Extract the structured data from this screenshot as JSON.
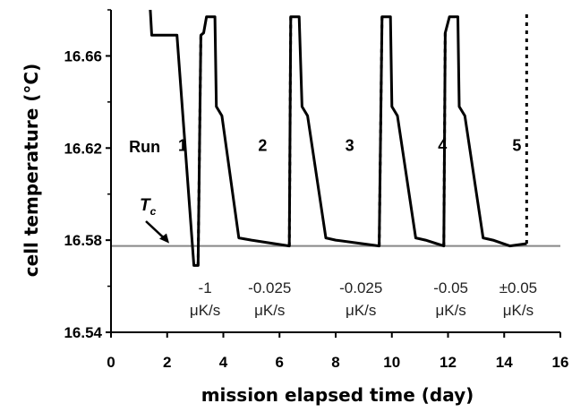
{
  "chart_data": {
    "type": "line",
    "xlabel": "mission elapsed time (day)",
    "ylabel": "cell temperature (°C)",
    "xlim": [
      0,
      16
    ],
    "ylim": [
      16.54,
      16.68
    ],
    "x_ticks": [
      0,
      2,
      4,
      6,
      8,
      10,
      12,
      14,
      16
    ],
    "y_ticks": [
      16.54,
      16.58,
      16.62,
      16.66
    ],
    "x_tick_labels": [
      "0",
      "2",
      "4",
      "6",
      "8",
      "10",
      "12",
      "14",
      "16"
    ],
    "y_tick_labels": [
      "16.54",
      "16.58",
      "16.62",
      "16.66"
    ],
    "grid": false,
    "reference_line": {
      "label": "T",
      "subscript": "c",
      "y": 16.5775,
      "color": "#888888"
    },
    "series": [
      {
        "values": [
          [
            1.35,
            16.68
          ],
          [
            1.4,
            16.68
          ],
          [
            1.45,
            16.669
          ],
          [
            2.3,
            16.669
          ],
          [
            2.35,
            16.669
          ],
          [
            2.95,
            16.569
          ],
          [
            3.05,
            16.569
          ],
          [
            3.1,
            16.569
          ],
          [
            3.2,
            16.669
          ],
          [
            3.3,
            16.67
          ],
          [
            3.4,
            16.677
          ],
          [
            3.7,
            16.677
          ],
          [
            3.75,
            16.638
          ],
          [
            3.95,
            16.634
          ],
          [
            4.55,
            16.581
          ],
          [
            5.0,
            16.58
          ],
          [
            6.35,
            16.5775
          ],
          [
            6.4,
            16.677
          ],
          [
            6.7,
            16.677
          ],
          [
            6.8,
            16.638
          ],
          [
            7.0,
            16.634
          ],
          [
            7.65,
            16.581
          ],
          [
            8.0,
            16.58
          ],
          [
            9.55,
            16.5775
          ],
          [
            9.65,
            16.677
          ],
          [
            9.95,
            16.677
          ],
          [
            10.0,
            16.638
          ],
          [
            10.2,
            16.634
          ],
          [
            10.85,
            16.581
          ],
          [
            11.2,
            16.58
          ],
          [
            11.85,
            16.5775
          ],
          [
            11.9,
            16.67
          ],
          [
            12.05,
            16.677
          ],
          [
            12.35,
            16.677
          ],
          [
            12.4,
            16.638
          ],
          [
            12.6,
            16.634
          ],
          [
            13.25,
            16.581
          ],
          [
            13.6,
            16.58
          ],
          [
            14.2,
            16.5775
          ],
          [
            14.8,
            16.5785
          ]
        ]
      }
    ],
    "dotted_segments": [
      [
        3.1,
        16.569,
        3.2,
        16.669
      ],
      [
        6.35,
        16.5775,
        6.4,
        16.677
      ],
      [
        9.55,
        16.5775,
        9.65,
        16.677
      ],
      [
        11.85,
        16.5775,
        11.9,
        16.67
      ],
      [
        14.8,
        16.5785,
        14.8,
        16.68
      ]
    ],
    "annotations": {
      "run_title": "Run",
      "runs": [
        {
          "label": "1",
          "x": 2.0,
          "y": 16.621
        },
        {
          "label": "2",
          "x": 4.85,
          "y": 16.621
        },
        {
          "label": "3",
          "x": 7.95,
          "y": 16.621
        },
        {
          "label": "4",
          "x": 11.25,
          "y": 16.621
        },
        {
          "label": "5",
          "x": 13.9,
          "y": 16.621
        }
      ],
      "rates": [
        {
          "value": "-1",
          "unit": "μK/s",
          "x": 2.9
        },
        {
          "value": "-0.025",
          "unit": "μK/s",
          "x": 5.2
        },
        {
          "value": "-0.025",
          "unit": "μK/s",
          "x": 8.45
        },
        {
          "value": "-0.05",
          "unit": "μK/s",
          "x": 11.65
        },
        {
          "value": "±0.05",
          "unit": "μK/s",
          "x": 14.05
        }
      ]
    }
  }
}
